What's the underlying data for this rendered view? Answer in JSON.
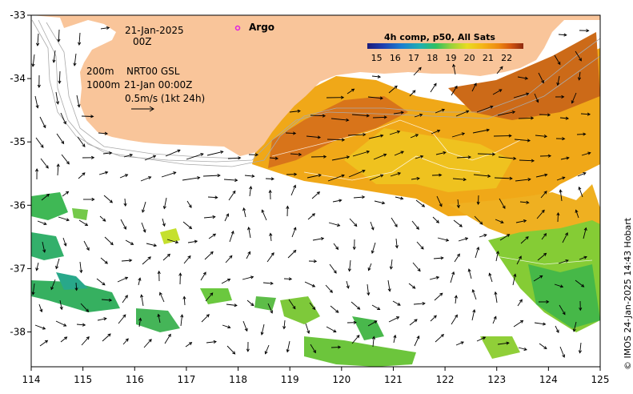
{
  "map": {
    "date": "21-Jan-2025",
    "hour": "00Z",
    "contour_200": "200m",
    "contour_1000": "1000m",
    "product": "NRT00 GSL",
    "product_time": "21-Jan 00:00Z",
    "scale_vector": "0.5m/s (1kt 24h)",
    "argo_label": "Argo",
    "copyright": "© IMOS 24-Jan-2025 14:43 Hobart",
    "colorbar": {
      "title": "4h comp, p50, All Sats",
      "ticks": [
        "15",
        "16",
        "17",
        "18",
        "19",
        "20",
        "21",
        "22"
      ],
      "min": 14.5,
      "max": 22.9
    },
    "lon_ticks": [
      "114",
      "115",
      "116",
      "117",
      "118",
      "119",
      "120",
      "121",
      "122",
      "123",
      "124",
      "125"
    ],
    "lat_ticks": [
      "-33",
      "-34",
      "-35",
      "-36",
      "-37",
      "-38"
    ],
    "extent": {
      "lon_min": 114,
      "lon_max": 125,
      "lat_min": -38.55,
      "lat_max": -33
    },
    "colors": {
      "land": "#f9c59a",
      "frame": "#000000",
      "contour": "#aaaaaa",
      "argo": "#e020e0"
    }
  }
}
